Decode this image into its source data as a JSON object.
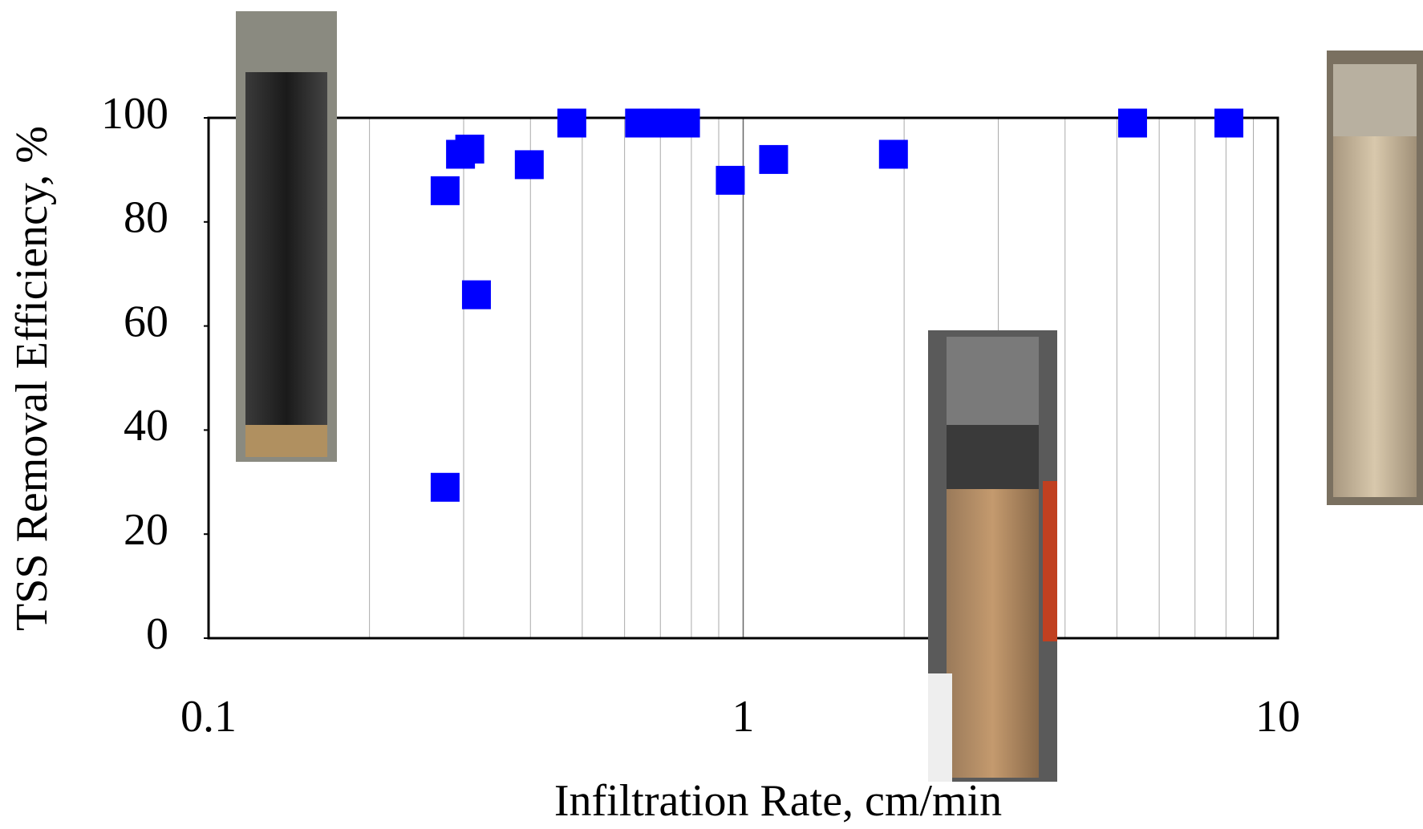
{
  "chart_data": {
    "type": "scatter",
    "x_label": "Infiltration Rate, cm/min",
    "y_label": "TSS Removal Efficiency, %",
    "x_log": true,
    "xlim": [
      0.1,
      10
    ],
    "xticks": [
      0.1,
      1,
      10
    ],
    "x_minor_ticks": [
      0.2,
      0.3,
      0.4,
      0.5,
      0.6,
      0.7,
      0.8,
      0.9,
      2,
      3,
      4,
      5,
      6,
      7,
      8,
      9
    ],
    "ylim": [
      0,
      100
    ],
    "yticks": [
      0,
      20,
      40,
      60,
      80,
      100
    ],
    "grid": true,
    "color": "#0000ff",
    "marker": "square",
    "x": [
      0.277,
      0.277,
      0.296,
      0.308,
      0.317,
      0.398,
      0.478,
      0.64,
      0.68,
      0.73,
      0.78,
      0.946,
      1.14,
      1.91,
      5.35,
      8.1
    ],
    "values": [
      86,
      29,
      93,
      94,
      66,
      91,
      99,
      99,
      99,
      99,
      99,
      88,
      92,
      93,
      99,
      99
    ]
  }
}
